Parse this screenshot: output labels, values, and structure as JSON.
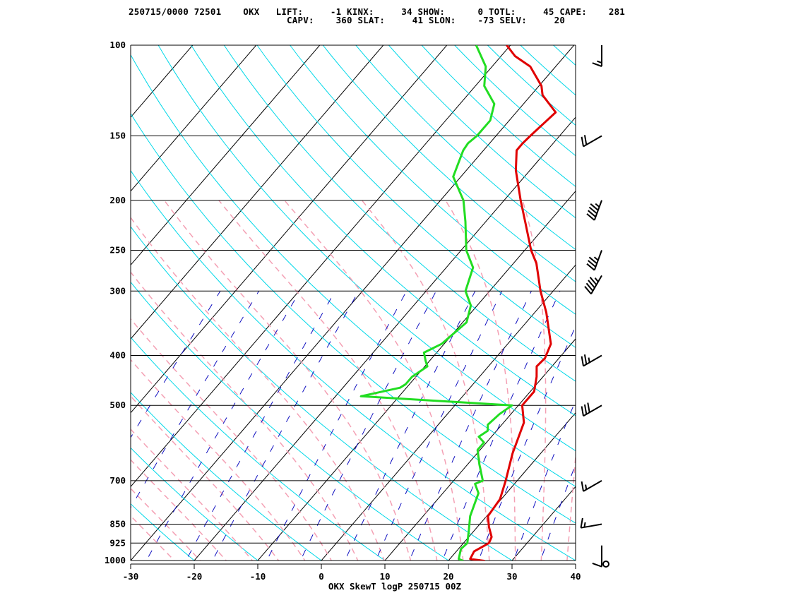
{
  "header": {
    "line1": "250715/0000 72501    OKX   LIFT:     -1 KINX:     34 SHOW:      0 TOTL:     45 CAPE:    281",
    "line2": "                             CAPV:    360 SLAT:     41 SLON:    -73 SELV:     20"
  },
  "colors": {
    "temperature": "#e00000",
    "dewpoint": "#22dd22",
    "isotherm": "#000000",
    "dry_adiabat": "#00d8e8",
    "moist_adiabat": "#f4a0b4",
    "mixing_ratio": "#1010c0",
    "wind_barb": "#000000"
  },
  "chart_data": {
    "type": "skew-t log-p sounding",
    "title": "OKX SkewT logP 250715 00Z",
    "pressure_ticks": [
      100,
      150,
      200,
      250,
      300,
      400,
      500,
      700,
      850,
      925,
      1000
    ],
    "temperature_ticks": [
      -30,
      -20,
      -10,
      0,
      10,
      20,
      30,
      40
    ],
    "plim": [
      1000,
      100
    ],
    "tlim": [
      -30,
      40
    ],
    "temperature_profile": [
      [
        1002,
        25.8
      ],
      [
        993,
        23.2
      ],
      [
        960,
        22.8
      ],
      [
        925,
        24.0
      ],
      [
        900,
        23.6
      ],
      [
        860,
        21.8
      ],
      [
        820,
        20.2
      ],
      [
        760,
        19.8
      ],
      [
        700,
        18.2
      ],
      [
        620,
        15.6
      ],
      [
        540,
        13.2
      ],
      [
        500,
        10.6
      ],
      [
        470,
        10.6
      ],
      [
        440,
        9.0
      ],
      [
        420,
        7.6
      ],
      [
        405,
        7.8
      ],
      [
        380,
        6.8
      ],
      [
        330,
        1.8
      ],
      [
        300,
        -2.0
      ],
      [
        265,
        -6.4
      ],
      [
        250,
        -9.0
      ],
      [
        220,
        -13.8
      ],
      [
        200,
        -17.4
      ],
      [
        175,
        -22.2
      ],
      [
        160,
        -24.8
      ],
      [
        155,
        -24.8
      ],
      [
        150,
        -24.6
      ],
      [
        135,
        -23.8
      ],
      [
        125,
        -28.2
      ],
      [
        120,
        -29.6
      ],
      [
        110,
        -34.0
      ],
      [
        105,
        -37.8
      ],
      [
        100,
        -40.6
      ]
    ],
    "dewpoint_profile": [
      [
        1002,
        22.4
      ],
      [
        993,
        21.4
      ],
      [
        950,
        20.4
      ],
      [
        925,
        20.6
      ],
      [
        870,
        19.0
      ],
      [
        820,
        17.4
      ],
      [
        740,
        15.6
      ],
      [
        710,
        13.8
      ],
      [
        700,
        14.6
      ],
      [
        650,
        11.8
      ],
      [
        610,
        9.6
      ],
      [
        590,
        9.6
      ],
      [
        575,
        8.0
      ],
      [
        560,
        8.6
      ],
      [
        545,
        7.8
      ],
      [
        520,
        8.2
      ],
      [
        500,
        9.0
      ],
      [
        480,
        -16.0
      ],
      [
        462,
        -11.0
      ],
      [
        455,
        -10.6
      ],
      [
        440,
        -10.6
      ],
      [
        420,
        -9.6
      ],
      [
        410,
        -10.6
      ],
      [
        395,
        -12.0
      ],
      [
        380,
        -10.4
      ],
      [
        345,
        -9.4
      ],
      [
        320,
        -11.0
      ],
      [
        300,
        -13.8
      ],
      [
        270,
        -15.8
      ],
      [
        250,
        -19.2
      ],
      [
        220,
        -23.2
      ],
      [
        200,
        -26.4
      ],
      [
        180,
        -31.2
      ],
      [
        160,
        -33.2
      ],
      [
        155,
        -33.4
      ],
      [
        150,
        -33.0
      ],
      [
        140,
        -33.0
      ],
      [
        130,
        -34.6
      ],
      [
        120,
        -38.6
      ],
      [
        110,
        -41.0
      ],
      [
        100,
        -45.4
      ]
    ],
    "wind_barbs_kt": [
      {
        "p": 1000,
        "speed": 0,
        "dir": 0
      },
      {
        "p": 935,
        "speed": 10,
        "dir": 180
      },
      {
        "p": 850,
        "speed": 15,
        "dir": 260
      },
      {
        "p": 700,
        "speed": 15,
        "dir": 240
      },
      {
        "p": 500,
        "speed": 30,
        "dir": 240
      },
      {
        "p": 400,
        "speed": 25,
        "dir": 240
      },
      {
        "p": 280,
        "speed": 45,
        "dir": 210
      },
      {
        "p": 250,
        "speed": 35,
        "dir": 200
      },
      {
        "p": 200,
        "speed": 45,
        "dir": 200
      },
      {
        "p": 150,
        "speed": 20,
        "dir": 240
      },
      {
        "p": 100,
        "speed": 15,
        "dir": 180
      }
    ]
  }
}
